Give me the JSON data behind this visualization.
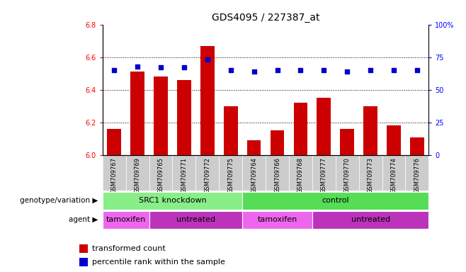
{
  "title": "GDS4095 / 227387_at",
  "samples": [
    "GSM709767",
    "GSM709769",
    "GSM709765",
    "GSM709771",
    "GSM709772",
    "GSM709775",
    "GSM709764",
    "GSM709766",
    "GSM709768",
    "GSM709777",
    "GSM709770",
    "GSM709773",
    "GSM709774",
    "GSM709776"
  ],
  "bar_values": [
    6.16,
    6.51,
    6.48,
    6.46,
    6.67,
    6.3,
    6.09,
    6.15,
    6.32,
    6.35,
    6.16,
    6.3,
    6.18,
    6.11
  ],
  "percentile_values": [
    65,
    68,
    67,
    67,
    73,
    65,
    64,
    65,
    65,
    65,
    64,
    65,
    65,
    65
  ],
  "bar_color": "#cc0000",
  "percentile_color": "#0000cc",
  "ylim_left": [
    6.0,
    6.8
  ],
  "ylim_right": [
    0,
    100
  ],
  "yticks_left": [
    6.0,
    6.2,
    6.4,
    6.6,
    6.8
  ],
  "yticks_right": [
    0,
    25,
    50,
    75,
    100
  ],
  "genotype_groups": [
    {
      "label": "SRC1 knockdown",
      "start": 0,
      "end": 5,
      "color": "#88ee88"
    },
    {
      "label": "control",
      "start": 6,
      "end": 13,
      "color": "#55dd55"
    }
  ],
  "agent_groups": [
    {
      "label": "tamoxifen",
      "start": 0,
      "end": 1,
      "color": "#ee66ee"
    },
    {
      "label": "untreated",
      "start": 2,
      "end": 5,
      "color": "#bb33bb"
    },
    {
      "label": "tamoxifen",
      "start": 6,
      "end": 8,
      "color": "#ee66ee"
    },
    {
      "label": "untreated",
      "start": 9,
      "end": 13,
      "color": "#bb33bb"
    }
  ],
  "legend_items": [
    {
      "label": "transformed count",
      "color": "#cc0000"
    },
    {
      "label": "percentile rank within the sample",
      "color": "#0000cc"
    }
  ],
  "background_color": "#ffffff",
  "genotype_label": "genotype/variation",
  "agent_label": "agent",
  "xtick_bg": "#cccccc"
}
